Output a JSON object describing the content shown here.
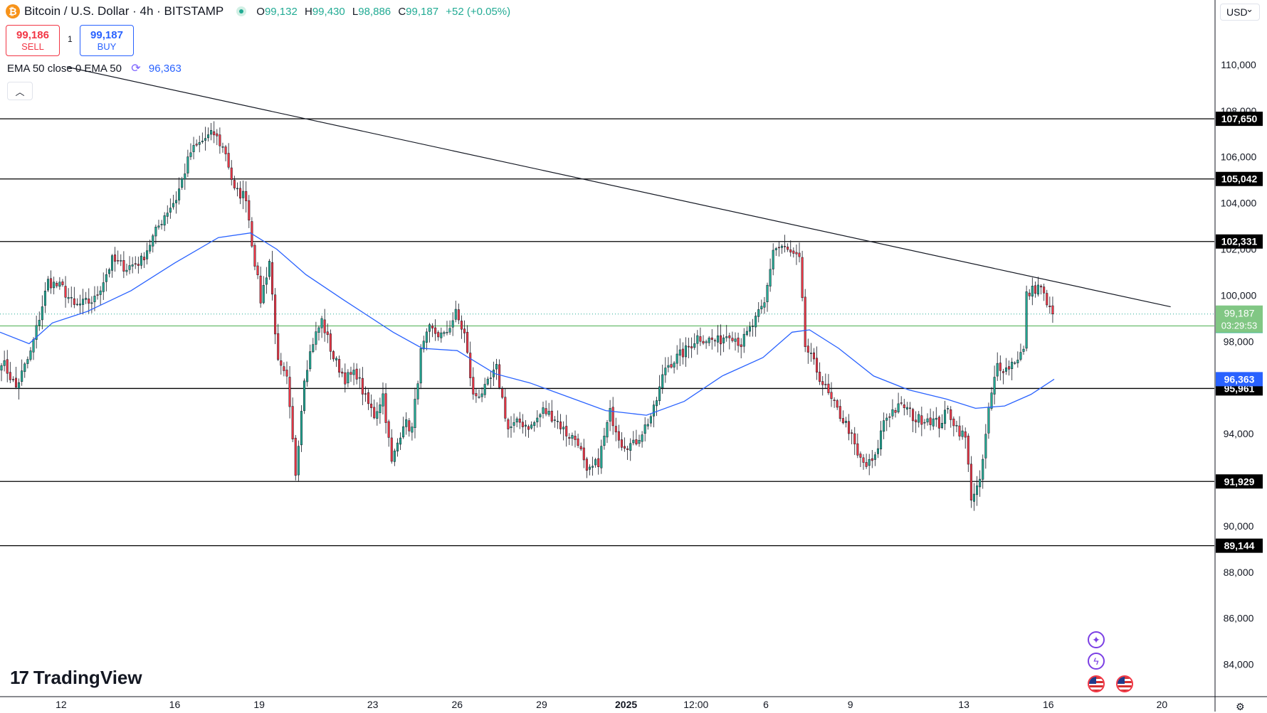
{
  "header": {
    "symbol_title": "Bitcoin / U.S. Dollar · 4h · BITSTAMP",
    "ohlc": {
      "open_key": "O",
      "open": "99,132",
      "high_key": "H",
      "high": "99,430",
      "low_key": "L",
      "low": "98,886",
      "close_key": "C",
      "close": "99,187",
      "change": "+52 (+0.05%)"
    }
  },
  "trade": {
    "sell_price": "99,186",
    "sell_label": "SELL",
    "buy_price": "99,187",
    "buy_label": "BUY",
    "spread": "1"
  },
  "indicator": {
    "label": "EMA 50 close 0 EMA 50",
    "value": "96,363"
  },
  "currency": "USD",
  "logo_text": "TradingView",
  "colors": {
    "up": "#22ab94",
    "down": "#f23645",
    "ema": "#2962ff",
    "level": "#000000",
    "current": "#22ab94"
  },
  "chart_data": {
    "type": "candlestick",
    "yaxis_ticks": [
      84000,
      86000,
      88000,
      90000,
      92000,
      94000,
      96000,
      98000,
      100000,
      102000,
      104000,
      106000,
      108000,
      110000
    ],
    "yaxis_tick_labels": [
      "84,000",
      "86,000",
      "88,000",
      "90,000",
      "92,000",
      "94,000",
      "96,000",
      "98,000",
      "100,000",
      "102,000",
      "104,000",
      "106,000",
      "108,000",
      "110,000"
    ],
    "ylim": [
      82600,
      112800
    ],
    "xlim": [
      0,
      417
    ],
    "xaxis_ticks": [
      {
        "label": "12",
        "pos": 21
      },
      {
        "label": "16",
        "pos": 60
      },
      {
        "label": "19",
        "pos": 89
      },
      {
        "label": "23",
        "pos": 128
      },
      {
        "label": "26",
        "pos": 157
      },
      {
        "label": "29",
        "pos": 186
      },
      {
        "label": "2025",
        "pos": 215
      },
      {
        "label": "12:00",
        "pos": 239
      },
      {
        "label": "6",
        "pos": 263
      },
      {
        "label": "9",
        "pos": 292
      },
      {
        "label": "13",
        "pos": 331
      },
      {
        "label": "16",
        "pos": 360
      },
      {
        "label": "20",
        "pos": 399
      }
    ],
    "horizontal_levels": [
      {
        "value": 107650,
        "label": "107,650"
      },
      {
        "value": 105042,
        "label": "105,042"
      },
      {
        "value": 102331,
        "label": "102,331"
      },
      {
        "value": 95961,
        "label": "95,961"
      },
      {
        "value": 91929,
        "label": "91,929"
      },
      {
        "value": 89144,
        "label": "89,144"
      }
    ],
    "green_level": {
      "value": 98672,
      "label": "98,672"
    },
    "current_price": {
      "value": 99187,
      "label": "99,187",
      "countdown": "03:29:53"
    },
    "ema_label": {
      "value": 96363,
      "label": "96,363"
    },
    "trendline": {
      "from": {
        "x": 23,
        "y": 109900
      },
      "to": {
        "x": 402,
        "y": 99500
      }
    },
    "anchors": [
      [
        0,
        97200
      ],
      [
        5,
        96000
      ],
      [
        10,
        97500
      ],
      [
        16,
        100600
      ],
      [
        21,
        100300
      ],
      [
        25,
        99500
      ],
      [
        32,
        99800
      ],
      [
        38,
        101500
      ],
      [
        43,
        101200
      ],
      [
        48,
        101500
      ],
      [
        56,
        103500
      ],
      [
        60,
        104200
      ],
      [
        65,
        106200
      ],
      [
        70,
        106800
      ],
      [
        73,
        107000
      ],
      [
        77,
        106200
      ],
      [
        80,
        104500
      ],
      [
        84,
        104300
      ],
      [
        86,
        102300
      ],
      [
        89,
        99800
      ],
      [
        92,
        101500
      ],
      [
        95,
        97000
      ],
      [
        98,
        96300
      ],
      [
        101,
        92300
      ],
      [
        104,
        96500
      ],
      [
        107,
        98000
      ],
      [
        110,
        98900
      ],
      [
        114,
        97300
      ],
      [
        118,
        96400
      ],
      [
        122,
        96600
      ],
      [
        125,
        95500
      ],
      [
        128,
        94800
      ],
      [
        131,
        95700
      ],
      [
        134,
        92700
      ],
      [
        138,
        94500
      ],
      [
        141,
        94200
      ],
      [
        144,
        97500
      ],
      [
        147,
        98500
      ],
      [
        152,
        98200
      ],
      [
        156,
        99200
      ],
      [
        159,
        98300
      ],
      [
        162,
        95600
      ],
      [
        166,
        95900
      ],
      [
        170,
        96800
      ],
      [
        174,
        94200
      ],
      [
        178,
        94500
      ],
      [
        182,
        94300
      ],
      [
        186,
        95000
      ],
      [
        190,
        94700
      ],
      [
        194,
        94000
      ],
      [
        198,
        93700
      ],
      [
        201,
        92200
      ],
      [
        205,
        92800
      ],
      [
        209,
        94900
      ],
      [
        213,
        93600
      ],
      [
        217,
        93500
      ],
      [
        221,
        94300
      ],
      [
        224,
        95000
      ],
      [
        228,
        96900
      ],
      [
        231,
        97200
      ],
      [
        235,
        97600
      ],
      [
        239,
        98200
      ],
      [
        242,
        98100
      ],
      [
        246,
        98000
      ],
      [
        250,
        98400
      ],
      [
        254,
        97900
      ],
      [
        258,
        98700
      ],
      [
        262,
        99600
      ],
      [
        265,
        102000
      ],
      [
        268,
        102100
      ],
      [
        271,
        101800
      ],
      [
        274,
        101500
      ],
      [
        276,
        97800
      ],
      [
        279,
        97000
      ],
      [
        282,
        96200
      ],
      [
        285,
        95400
      ],
      [
        288,
        94800
      ],
      [
        291,
        94200
      ],
      [
        294,
        93000
      ],
      [
        297,
        92600
      ],
      [
        300,
        92900
      ],
      [
        303,
        94600
      ],
      [
        306,
        95000
      ],
      [
        310,
        95200
      ],
      [
        314,
        94600
      ],
      [
        318,
        94700
      ],
      [
        322,
        94400
      ],
      [
        325,
        95000
      ],
      [
        328,
        94300
      ],
      [
        331,
        93800
      ],
      [
        333,
        91300
      ],
      [
        336,
        91800
      ],
      [
        339,
        95000
      ],
      [
        342,
        97000
      ],
      [
        345,
        96800
      ],
      [
        348,
        97200
      ],
      [
        351,
        97600
      ],
      [
        352,
        100000
      ],
      [
        355,
        100300
      ],
      [
        357,
        100400
      ],
      [
        359,
        99500
      ],
      [
        361,
        99187
      ]
    ],
    "ema_anchors": [
      [
        0,
        98400
      ],
      [
        10,
        97900
      ],
      [
        18,
        98800
      ],
      [
        30,
        99300
      ],
      [
        45,
        100200
      ],
      [
        60,
        101400
      ],
      [
        75,
        102500
      ],
      [
        86,
        102700
      ],
      [
        95,
        102000
      ],
      [
        105,
        100900
      ],
      [
        118,
        99800
      ],
      [
        135,
        98400
      ],
      [
        145,
        97700
      ],
      [
        157,
        97600
      ],
      [
        170,
        96600
      ],
      [
        182,
        96200
      ],
      [
        195,
        95600
      ],
      [
        208,
        95000
      ],
      [
        222,
        94800
      ],
      [
        235,
        95400
      ],
      [
        248,
        96500
      ],
      [
        262,
        97300
      ],
      [
        272,
        98400
      ],
      [
        278,
        98500
      ],
      [
        288,
        97700
      ],
      [
        300,
        96500
      ],
      [
        312,
        95900
      ],
      [
        325,
        95500
      ],
      [
        335,
        95100
      ],
      [
        345,
        95200
      ],
      [
        354,
        95700
      ],
      [
        362,
        96363
      ]
    ]
  }
}
